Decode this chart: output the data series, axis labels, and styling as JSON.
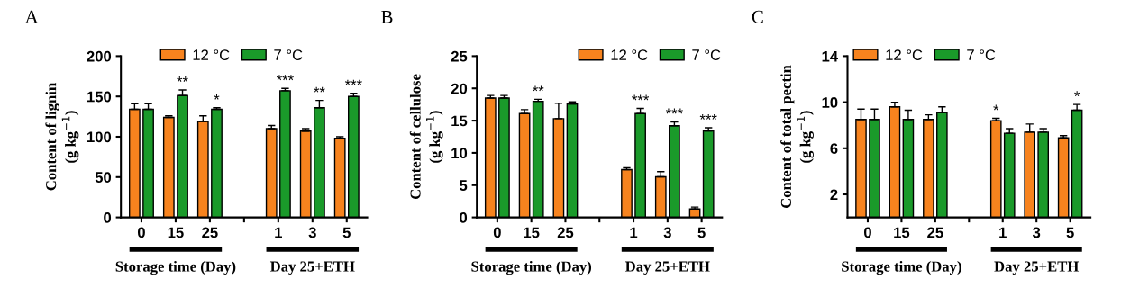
{
  "chart_data": [
    {
      "type": "bar",
      "title": "A",
      "ylabel": "Content of lignin\n(g kg$^{−1}$)",
      "categories": [
        "0",
        "15",
        "25",
        null,
        "1",
        "3",
        "5"
      ],
      "ylim": [
        0,
        200
      ],
      "yticks": [
        0,
        50,
        100,
        150,
        200
      ],
      "legend": "top",
      "grid": false,
      "series": [
        {
          "name": "12 °C",
          "color": "#f7831e",
          "values": [
            134,
            124,
            119,
            null,
            110,
            107,
            98
          ],
          "errors": [
            7,
            2,
            7,
            null,
            4,
            3,
            2
          ]
        },
        {
          "name": "7 °C",
          "color": "#1a9a2a",
          "values": [
            134,
            151,
            134,
            null,
            157,
            136,
            150
          ],
          "errors": [
            7,
            7,
            2,
            null,
            3,
            9,
            4
          ]
        }
      ],
      "annotations": [
        "Storage time (Day)",
        "Day 25+ETH",
        {
          "text": "**",
          "x": "15",
          "y": 158
        },
        {
          "text": "*",
          "x": "25",
          "y": 136
        },
        {
          "text": "***",
          "x": "1",
          "y": 160
        },
        {
          "text": "**",
          "x": "3",
          "y": 145
        },
        {
          "text": "***",
          "x": "5",
          "y": 154
        }
      ]
    },
    {
      "type": "bar",
      "title": "B",
      "ylabel": "Content of cellulose\n(g kg$^{−1}$)",
      "categories": [
        "0",
        "15",
        "25",
        null,
        "1",
        "3",
        "5"
      ],
      "ylim": [
        0,
        25
      ],
      "yticks": [
        0,
        5,
        10,
        15,
        20,
        25
      ],
      "legend": "top right",
      "grid": false,
      "series": [
        {
          "name": "12 °C",
          "color": "#f7831e",
          "values": [
            18.5,
            16.1,
            15.3,
            null,
            7.4,
            6.3,
            1.3
          ],
          "errors": [
            0.4,
            0.6,
            2.4,
            null,
            0.3,
            0.8,
            0.3
          ]
        },
        {
          "name": "7 °C",
          "color": "#1a9a2a",
          "values": [
            18.5,
            18.0,
            17.6,
            null,
            16.1,
            14.2,
            13.4
          ],
          "errors": [
            0.4,
            0.3,
            0.3,
            null,
            0.8,
            0.6,
            0.5
          ]
        }
      ],
      "annotations": [
        "Storage time (Day)",
        "Day 25+ETH",
        {
          "text": "**",
          "x": "15",
          "y": 18.3
        },
        {
          "text": "***",
          "x": "1",
          "y": 16.9
        },
        {
          "text": "***",
          "x": "3",
          "y": 14.8
        },
        {
          "text": "***",
          "x": "5",
          "y": 13.9
        }
      ]
    },
    {
      "type": "bar",
      "title": "C",
      "ylabel": "Content of total pectin\n(g kg$^{−1}$)",
      "categories": [
        "0",
        "15",
        "25",
        null,
        "1",
        "3",
        "5"
      ],
      "ylim": [
        0,
        14
      ],
      "yticks": [
        2,
        6,
        10,
        14
      ],
      "legend": "top left",
      "grid": false,
      "series": [
        {
          "name": "12 °C",
          "color": "#f7831e",
          "values": [
            8.5,
            9.6,
            8.5,
            null,
            8.4,
            7.4,
            6.9
          ],
          "errors": [
            0.9,
            0.4,
            0.4,
            null,
            0.2,
            0.7,
            0.2
          ]
        },
        {
          "name": "7 °C",
          "color": "#1a9a2a",
          "values": [
            8.5,
            8.5,
            9.1,
            null,
            7.3,
            7.4,
            9.3
          ],
          "errors": [
            0.9,
            0.8,
            0.5,
            null,
            0.4,
            0.3,
            0.5
          ]
        }
      ],
      "annotations": [
        "Storage time (Day)",
        "Day 25+ETH",
        {
          "text": "*",
          "x": "1",
          "y": 8.6
        },
        {
          "text": "*",
          "x": "5",
          "y": 9.8
        }
      ]
    }
  ]
}
